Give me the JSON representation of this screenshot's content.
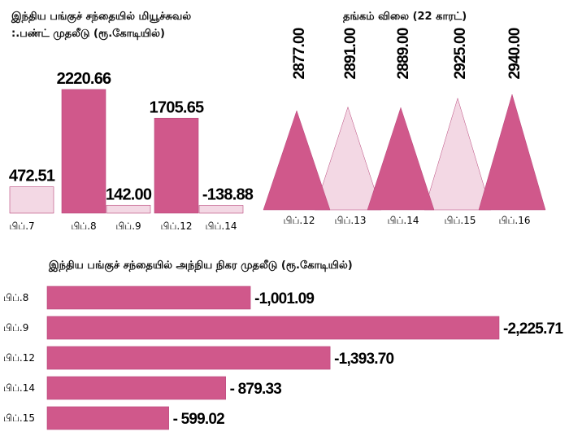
{
  "colors": {
    "dark": "#d0588b",
    "light": "#f3d8e4",
    "stroke": "#b8457a"
  },
  "chart_data": [
    {
      "type": "bar",
      "title_line1": "இந்திய பங்குச் சந்தையில் மியூச்சுவல்",
      "title_line2": ":.பண்ட் முதலீடு (ரூ.கோடியில்)",
      "categories": [
        "பிப்.7",
        "பிப்.8",
        "பிப்.9",
        "பிப்.12",
        "பிப்.14"
      ],
      "values": [
        472.51,
        2220.66,
        142.0,
        1705.65,
        -138.88
      ],
      "labels": [
        "472.51",
        "2220.66",
        "142.00",
        "1705.65",
        "-138.88"
      ],
      "bar_colors": [
        "light",
        "dark",
        "light",
        "dark",
        "light"
      ]
    },
    {
      "type": "area",
      "title": "தங்கம் விலை (22 காரட்)",
      "categories": [
        "பிப்.12",
        "பிப்.13",
        "பிப்.14",
        "பிப்.15",
        "பிப்.16"
      ],
      "values": [
        2877.0,
        2891.0,
        2889.0,
        2925.0,
        2940.0
      ],
      "labels": [
        "2877.00",
        "2891.00",
        "2889.00",
        "2925.00",
        "2940.00"
      ],
      "shape_colors": [
        "dark",
        "light",
        "dark",
        "light",
        "dark"
      ]
    },
    {
      "type": "bar",
      "orientation": "horizontal",
      "title": "இந்திய பங்குச் சந்தையில் அந்நிய நிகர முதலீடு (ரூ.கோடியில்)",
      "categories": [
        "பிப்.8",
        "பிப்.9",
        "பிப்.12",
        "பிப்.14",
        "பிப்.15"
      ],
      "values": [
        -1001.09,
        -2225.71,
        -1393.7,
        -879.33,
        -599.02
      ],
      "labels": [
        "-1,001.09",
        "-2,225.71",
        "-1,393.70",
        "- 879.33",
        "- 599.02"
      ]
    }
  ]
}
